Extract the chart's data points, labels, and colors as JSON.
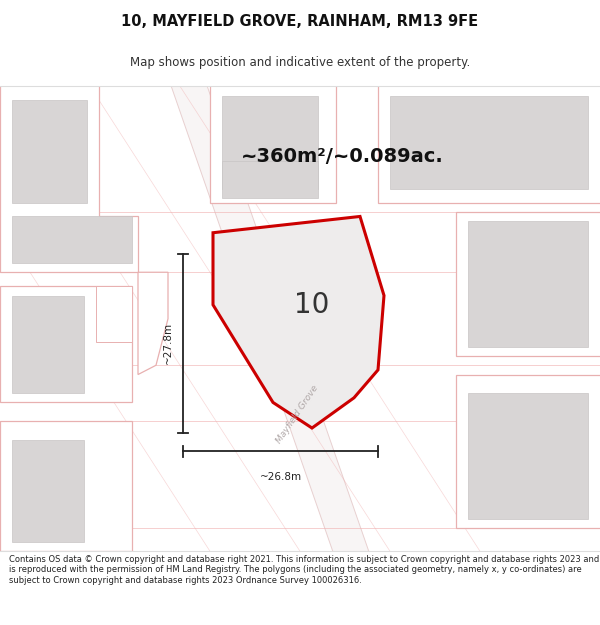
{
  "title_line1": "10, MAYFIELD GROVE, RAINHAM, RM13 9FE",
  "title_line2": "Map shows position and indicative extent of the property.",
  "area_label": "~360m²/~0.089ac.",
  "plot_number": "10",
  "street_label": "Mayfield Grove",
  "dim_horizontal": "~26.8m",
  "dim_vertical": "~27.8m",
  "footer_text": "Contains OS data © Crown copyright and database right 2021. This information is subject to Crown copyright and database rights 2023 and is reproduced with the permission of HM Land Registry. The polygons (including the associated geometry, namely x, y co-ordinates) are subject to Crown copyright and database rights 2023 Ordnance Survey 100026316.",
  "bg_color": "#ffffff",
  "map_bg": "#ffffff",
  "plot_fill": "#eeecec",
  "plot_edge": "#cc0000",
  "building_fill": "#d8d5d5",
  "road_outline": "#f0c8c8",
  "dim_color": "#222222",
  "footer_bg": "#ffffff",
  "pink_line": "#f0b0b0",
  "block_outline": "#e8b0b0"
}
